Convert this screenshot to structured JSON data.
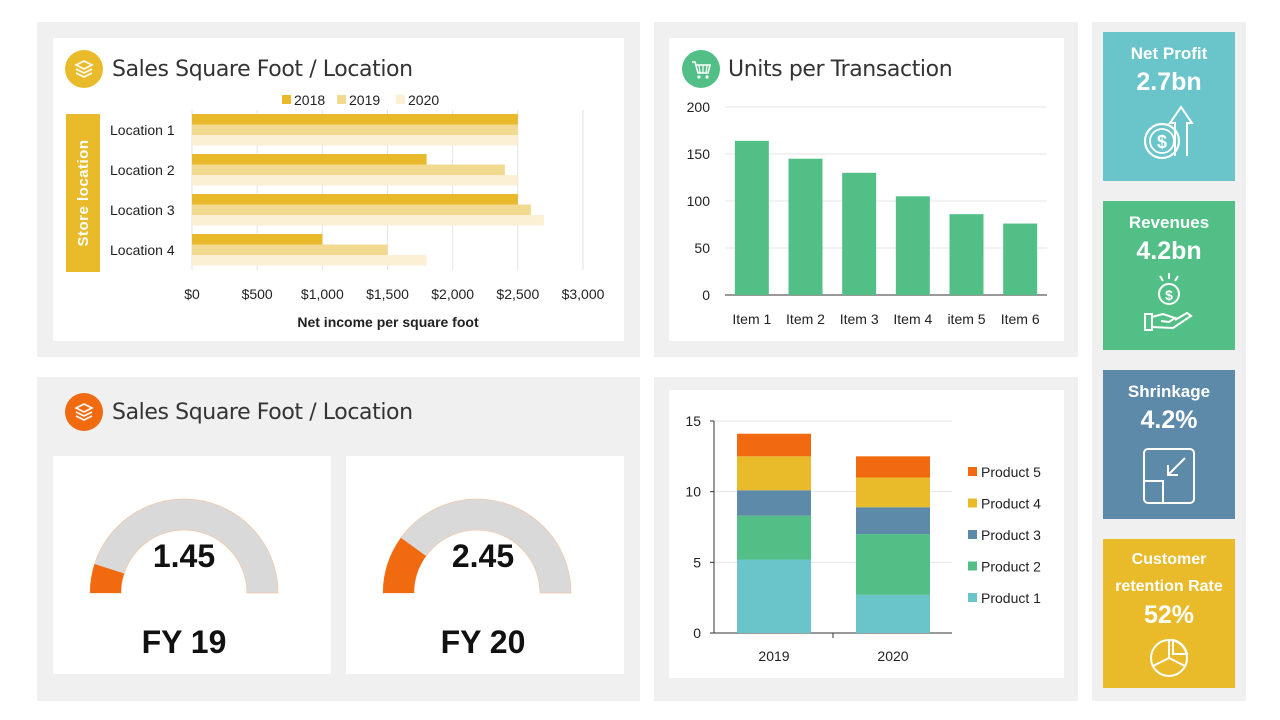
{
  "colors": {
    "panel_bg": "#f0f0f0",
    "yellow_2018": "#e8b92a",
    "yellow_2019": "#f2d990",
    "yellow_2020": "#fbefd4",
    "green": "#52bf87",
    "orange": "#f26a10",
    "teal": "#6ac5cb",
    "slate": "#5d8aa8",
    "gold": "#e9bb2a",
    "gray": "#d9d9d9"
  },
  "sales_panel": {
    "title": "Sales Square Foot / Location",
    "icon": "layers-icon",
    "y_axis_title": "Store location",
    "x_axis_title": "Net income per square foot"
  },
  "units_panel": {
    "title": "Units per Transaction",
    "icon": "shopping-cart-icon"
  },
  "gauge_panel": {
    "title": "Sales Square Foot / Location",
    "icon": "layers-icon",
    "gauges": [
      {
        "value_label": "1.45",
        "fy_label": "FY 19",
        "fill": 0.1
      },
      {
        "value_label": "2.45",
        "fy_label": "FY 20",
        "fill": 0.2
      }
    ]
  },
  "kpis": [
    {
      "label": "Net Profit",
      "value": "2.7bn",
      "icon": "dollar-coin-up-arrow-icon",
      "color": "#6ac5cb"
    },
    {
      "label": "Revenues",
      "value": "4.2bn",
      "icon": "hand-dollar-icon",
      "color": "#52bf87"
    },
    {
      "label": "Shrinkage",
      "value": "4.2%",
      "icon": "shrink-arrow-icon",
      "color": "#5d8aa8"
    },
    {
      "label": "Customer retention Rate",
      "value": "52%",
      "icon": "pie-chart-icon",
      "color": "#e9bb2a"
    }
  ],
  "chart_data": [
    {
      "type": "bar",
      "orientation": "horizontal",
      "categories": [
        "Location 1",
        "Location 2",
        "Location 3",
        "Location 4"
      ],
      "series": [
        {
          "name": "2018",
          "values": [
            2500,
            1800,
            2500,
            1000
          ],
          "color": "#e8b92a"
        },
        {
          "name": "2019",
          "values": [
            2500,
            2400,
            2600,
            1500
          ],
          "color": "#f2d990"
        },
        {
          "name": "2020",
          "values": [
            2500,
            2500,
            2700,
            1800
          ],
          "color": "#fbefd4"
        }
      ],
      "xlim": [
        0,
        3000
      ],
      "x_ticks": [
        "$0",
        "$500",
        "$1,000",
        "$1,500",
        "$2,000",
        "$2,500",
        "$3,000"
      ],
      "xlabel": "Net income per square foot",
      "ylabel": "Store location",
      "legend": "top",
      "grid": true
    },
    {
      "type": "bar",
      "categories": [
        "Item 1",
        "Item 2",
        "Item 3",
        "Item 4",
        "item 5",
        "Item 6"
      ],
      "values": [
        164,
        145,
        130,
        105,
        86,
        76
      ],
      "color": "#52bf87",
      "ylim": [
        0,
        200
      ],
      "y_ticks": [
        "0",
        "50",
        "100",
        "150",
        "200"
      ],
      "grid": true
    },
    {
      "type": "bar",
      "stacked": true,
      "categories": [
        "2019",
        "2020"
      ],
      "series": [
        {
          "name": "Product 1",
          "values": [
            5.2,
            2.7
          ],
          "color": "#6ac5cb"
        },
        {
          "name": "Product 2",
          "values": [
            3.1,
            4.3
          ],
          "color": "#52bf87"
        },
        {
          "name": "Product 3",
          "values": [
            1.8,
            1.9
          ],
          "color": "#5d8aa8"
        },
        {
          "name": "Product 4",
          "values": [
            2.4,
            2.1
          ],
          "color": "#e9bb2a"
        },
        {
          "name": "Product 5",
          "values": [
            1.6,
            1.5
          ],
          "color": "#f26a10"
        }
      ],
      "ylim": [
        0,
        15
      ],
      "y_ticks": [
        "0",
        "5",
        "10",
        "15"
      ],
      "legend": "right",
      "grid": true
    }
  ]
}
